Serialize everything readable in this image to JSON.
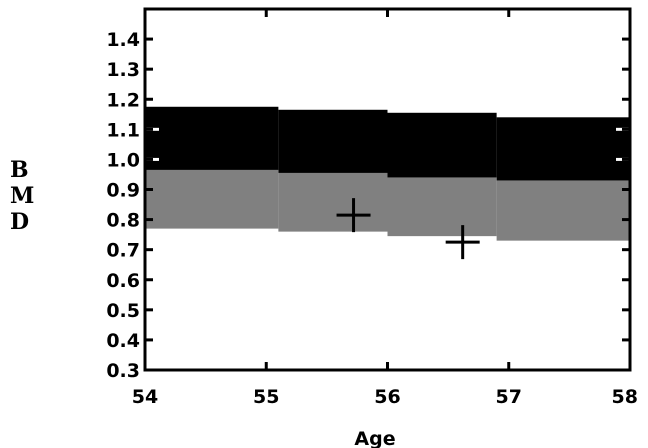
{
  "chart_data": {
    "type": "area",
    "title": "",
    "xlabel": "Age",
    "ylabel": "BMD",
    "ylabel_letters": [
      "B",
      "M",
      "D"
    ],
    "xlim": [
      54,
      58
    ],
    "ylim": [
      0.3,
      1.5
    ],
    "x_ticks": [
      "54",
      "55",
      "56",
      "57",
      "58"
    ],
    "y_ticks": [
      "0.3",
      "0.4",
      "0.5",
      "0.6",
      "0.7",
      "0.8",
      "0.9",
      "1.0",
      "1.1",
      "1.2",
      "1.3",
      "1.4"
    ],
    "bands": [
      {
        "color": "#000000",
        "steps": [
          {
            "x0": 54,
            "x1": 55.1,
            "low": 0.965,
            "high": 1.175
          },
          {
            "x0": 55.1,
            "x1": 56.0,
            "low": 0.955,
            "high": 1.165
          },
          {
            "x0": 56.0,
            "x1": 56.9,
            "low": 0.94,
            "high": 1.155
          },
          {
            "x0": 56.9,
            "x1": 58.0,
            "low": 0.93,
            "high": 1.14
          }
        ]
      },
      {
        "color": "#808080",
        "steps": [
          {
            "x0": 54,
            "x1": 55.1,
            "low": 0.77,
            "high": 0.965
          },
          {
            "x0": 55.1,
            "x1": 56.0,
            "low": 0.76,
            "high": 0.955
          },
          {
            "x0": 56.0,
            "x1": 56.9,
            "low": 0.745,
            "high": 0.94
          },
          {
            "x0": 56.9,
            "x1": 58.0,
            "low": 0.73,
            "high": 0.93
          }
        ]
      }
    ],
    "white_markers_y": [
      1.1,
      1.0
    ],
    "points": [
      {
        "x": 55.72,
        "y": 0.815
      },
      {
        "x": 56.62,
        "y": 0.725
      }
    ]
  }
}
